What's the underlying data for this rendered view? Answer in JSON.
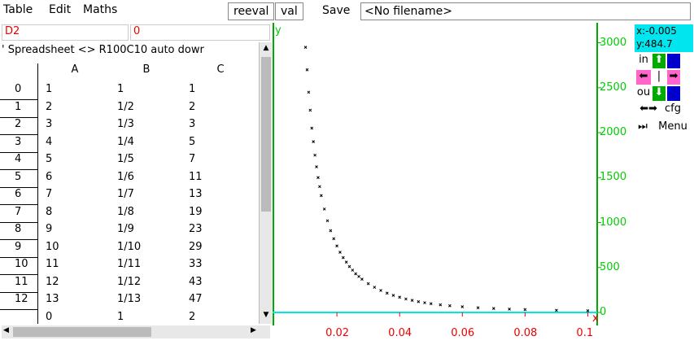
{
  "menubar": {
    "table": "Table",
    "edit": "Edit",
    "maths": "Maths",
    "reeval": "reeval",
    "val": "val",
    "save": "Save",
    "filename": "<No filename>"
  },
  "editbar": {
    "cell_ref": "D2",
    "cell_value": "0"
  },
  "sheet": {
    "status": "' Spreadsheet <> R100C10 auto dowr",
    "columns": [
      "A",
      "B",
      "C"
    ],
    "rows": [
      {
        "label": "0",
        "a": "1",
        "b": "1",
        "c": "1"
      },
      {
        "label": "1",
        "a": "2",
        "b": "1/2",
        "c": "2"
      },
      {
        "label": "2",
        "a": "3",
        "b": "1/3",
        "c": "3"
      },
      {
        "label": "3",
        "a": "4",
        "b": "1/4",
        "c": "5"
      },
      {
        "label": "4",
        "a": "5",
        "b": "1/5",
        "c": "7"
      },
      {
        "label": "5",
        "a": "6",
        "b": "1/6",
        "c": "11"
      },
      {
        "label": "6",
        "a": "7",
        "b": "1/7",
        "c": "13"
      },
      {
        "label": "7",
        "a": "8",
        "b": "1/8",
        "c": "19"
      },
      {
        "label": "8",
        "a": "9",
        "b": "1/9",
        "c": "23"
      },
      {
        "label": "9",
        "a": "10",
        "b": "1/10",
        "c": "29"
      },
      {
        "label": "10",
        "a": "11",
        "b": "1/11",
        "c": "33"
      },
      {
        "label": "11",
        "a": "12",
        "b": "1/12",
        "c": "43"
      },
      {
        "label": "12",
        "a": "13",
        "b": "1/13",
        "c": "47"
      }
    ],
    "footer": {
      "a": "0",
      "b": "1",
      "c": "2"
    }
  },
  "plot": {
    "y_axis_label": "y",
    "x_axis_label": "x",
    "y_ticks": [
      "3000",
      "2500",
      "2000",
      "1500",
      "1000",
      "500",
      "0"
    ],
    "x_ticks": [
      "0.02",
      "0.04",
      "0.06",
      "0.08",
      "0.1"
    ],
    "coords_x": "x:-0.005",
    "coords_y": "y:484.7",
    "btn_in": "in",
    "btn_out": "ou",
    "btn_cfg": "cfg",
    "btn_menu": "Menu",
    "btn_pipe": "|",
    "axis_color": "#00aa00",
    "baseline_color": "#00e5ee"
  },
  "chart_data": {
    "type": "scatter",
    "x": [
      0.01,
      0.0105,
      0.011,
      0.0115,
      0.012,
      0.0125,
      0.013,
      0.0135,
      0.014,
      0.0145,
      0.015,
      0.016,
      0.017,
      0.018,
      0.019,
      0.02,
      0.021,
      0.022,
      0.023,
      0.024,
      0.025,
      0.026,
      0.027,
      0.028,
      0.03,
      0.032,
      0.034,
      0.036,
      0.038,
      0.04,
      0.042,
      0.044,
      0.046,
      0.048,
      0.05,
      0.053,
      0.056,
      0.06,
      0.065,
      0.07,
      0.075,
      0.08,
      0.09,
      0.1
    ],
    "y": [
      2950,
      2700,
      2450,
      2250,
      2050,
      1900,
      1750,
      1620,
      1500,
      1400,
      1300,
      1150,
      1020,
      910,
      820,
      740,
      670,
      610,
      560,
      510,
      470,
      430,
      400,
      370,
      320,
      280,
      245,
      215,
      190,
      170,
      150,
      135,
      120,
      108,
      97,
      85,
      75,
      63,
      52,
      44,
      37,
      32,
      24,
      19
    ],
    "xlabel": "x",
    "ylabel": "y",
    "xlim": [
      0,
      0.103
    ],
    "ylim": [
      0,
      3150
    ],
    "grid": false
  }
}
